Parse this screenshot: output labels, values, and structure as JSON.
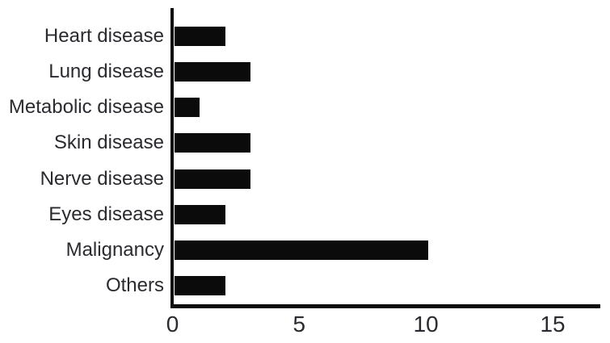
{
  "chart_data": {
    "type": "bar",
    "orientation": "horizontal",
    "title": "",
    "xlabel": "",
    "ylabel": "",
    "categories": [
      "Heart disease",
      "Lung disease",
      "Metabolic disease",
      "Skin disease",
      "Nerve disease",
      "Eyes disease",
      "Malignancy",
      "Others"
    ],
    "values": [
      2,
      3,
      1,
      3,
      3,
      2,
      10,
      2
    ],
    "xticks": [
      0,
      5,
      10,
      15
    ],
    "xlim": [
      0,
      16.8
    ],
    "grid": false,
    "legend": false,
    "bar_color": "#0b0b0b",
    "axis_color": "#0e0e0e",
    "text_color": "#2a2b30",
    "background": "#ffffff"
  }
}
